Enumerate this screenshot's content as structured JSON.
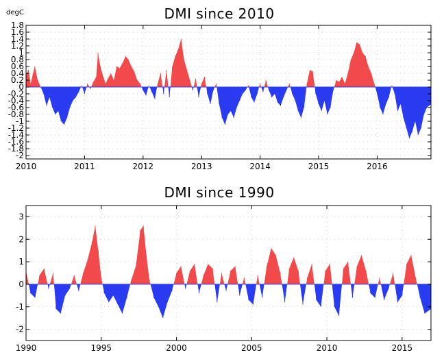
{
  "colors": {
    "positive": "#f24a4a",
    "negative": "#2a3cf2",
    "grid": "#c8c8c8",
    "frame": "#000000"
  },
  "chart_data": [
    {
      "type": "area",
      "title": "DMI since 2010",
      "ylabel": "degC",
      "grid": true,
      "xlim": [
        2010.0,
        2016.92
      ],
      "ylim": [
        -2.1,
        1.8
      ],
      "xticks": [
        2010,
        2011,
        2012,
        2013,
        2014,
        2015,
        2016
      ],
      "xtick_labels": [
        "2010",
        "2011",
        "2012",
        "2013",
        "2014",
        "2015",
        "2016"
      ],
      "yticks": [
        1.8,
        1.6,
        1.4,
        1.2,
        1,
        0.8,
        0.6,
        0.4,
        0.2,
        0,
        -0.2,
        -0.4,
        -0.6,
        -0.8,
        -1,
        -1.2,
        -1.4,
        -1.6,
        -1.8,
        -2
      ],
      "ytick_labels": [
        "1.8",
        "1.6",
        "1.4",
        "1.2",
        "1",
        "0.8",
        "0.6",
        "0.4",
        "0.2",
        "0",
        "-0.2",
        "-0.4",
        "-0.6",
        "-0.8",
        "-1",
        "-1.2",
        "-1.4",
        "-1.6",
        "-1.8",
        "-2"
      ],
      "series": [
        {
          "x": [
            2010.0,
            2010.04,
            2010.08,
            2010.12,
            2010.15,
            2010.2,
            2010.25,
            2010.3,
            2010.35,
            2010.4,
            2010.45,
            2010.5,
            2010.55,
            2010.6,
            2010.65,
            2010.7,
            2010.75,
            2010.8,
            2010.85,
            2010.9,
            2010.95,
            2011.0,
            2011.05,
            2011.1,
            2011.15,
            2011.2,
            2011.23,
            2011.27,
            2011.32,
            2011.36,
            2011.4,
            2011.45,
            2011.5,
            2011.55,
            2011.6,
            2011.65,
            2011.7,
            2011.75,
            2011.8,
            2011.85,
            2011.9,
            2011.95,
            2012.0,
            2012.05,
            2012.1,
            2012.15,
            2012.2,
            2012.25,
            2012.3,
            2012.35,
            2012.4,
            2012.45,
            2012.5,
            2012.55,
            2012.6,
            2012.65,
            2012.7,
            2012.75,
            2012.8,
            2012.85,
            2012.9,
            2012.95,
            2013.0,
            2013.05,
            2013.1,
            2013.15,
            2013.2,
            2013.25,
            2013.3,
            2013.35,
            2013.4,
            2013.45,
            2013.5,
            2013.55,
            2013.6,
            2013.65,
            2013.7,
            2013.75,
            2013.8,
            2013.85,
            2013.9,
            2013.95,
            2014.0,
            2014.05,
            2014.1,
            2014.15,
            2014.2,
            2014.25,
            2014.3,
            2014.35,
            2014.4,
            2014.45,
            2014.5,
            2014.55,
            2014.6,
            2014.65,
            2014.7,
            2014.75,
            2014.8,
            2014.85,
            2014.9,
            2014.95,
            2015.0,
            2015.05,
            2015.1,
            2015.15,
            2015.2,
            2015.25,
            2015.3,
            2015.35,
            2015.4,
            2015.45,
            2015.5,
            2015.55,
            2015.6,
            2015.65,
            2015.7,
            2015.75,
            2015.8,
            2015.85,
            2015.9,
            2015.95,
            2016.0,
            2016.05,
            2016.1,
            2016.15,
            2016.2,
            2016.25,
            2016.3,
            2016.35,
            2016.4,
            2016.45,
            2016.5,
            2016.55,
            2016.6,
            2016.65,
            2016.7,
            2016.75,
            2016.8,
            2016.85,
            2016.92
          ],
          "y": [
            0.35,
            0.5,
            0.1,
            0.4,
            0.6,
            0.2,
            0,
            -0.2,
            -0.55,
            -0.3,
            -0.6,
            -0.8,
            -0.7,
            -1.0,
            -1.1,
            -0.9,
            -0.6,
            -0.4,
            -0.3,
            -0.15,
            0.05,
            -0.2,
            0.1,
            -0.05,
            0.15,
            0.3,
            1.0,
            0.6,
            0.3,
            0.1,
            0.25,
            0.4,
            0.2,
            0.6,
            0.55,
            0.7,
            0.9,
            0.8,
            0.6,
            0.45,
            0.2,
            0.1,
            -0.1,
            -0.25,
            0.05,
            -0.15,
            -0.35,
            0.1,
            0.4,
            -0.2,
            0.5,
            -0.3,
            0.6,
            0.9,
            1.1,
            1.4,
            0.8,
            0.5,
            0.2,
            -0.1,
            0.25,
            -0.3,
            0.1,
            0.3,
            -0.2,
            -0.5,
            -0.1,
            0.1,
            -0.5,
            -0.9,
            -1.1,
            -0.8,
            -0.7,
            -0.9,
            -0.6,
            -0.4,
            -0.2,
            -0.1,
            0.05,
            -0.3,
            -0.45,
            -0.2,
            0.1,
            -0.15,
            0.2,
            -0.1,
            -0.3,
            -0.2,
            -0.45,
            -0.55,
            -0.3,
            -0.1,
            0.1,
            -0.2,
            -0.4,
            -0.7,
            -0.9,
            -0.6,
            0.1,
            0.5,
            0.45,
            -0.2,
            -0.5,
            -0.7,
            -0.4,
            -0.8,
            -0.6,
            -0.1,
            0.2,
            0.15,
            0.3,
            0.1,
            0.4,
            0.8,
            1.0,
            1.3,
            1.25,
            1.0,
            0.9,
            0.6,
            0.4,
            0.1,
            -0.2,
            -0.6,
            -0.8,
            -0.5,
            -0.3,
            0.05,
            -0.2,
            -0.7,
            -0.5,
            -0.9,
            -1.2,
            -1.5,
            -1.3,
            -1.0,
            -1.4,
            -1.2,
            -0.8,
            -0.6,
            -0.5
          ]
        }
      ]
    },
    {
      "type": "area",
      "title": "DMI since 1990",
      "grid": true,
      "xlim": [
        1990.0,
        2016.92
      ],
      "ylim": [
        -2.5,
        3.5
      ],
      "xticks": [
        1990,
        1995,
        2000,
        2005,
        2010,
        2015
      ],
      "xtick_labels": [
        "1990",
        "1995",
        "2000",
        "2005",
        "2010",
        "2015"
      ],
      "yticks": [
        3,
        2,
        1,
        0,
        -1,
        -2
      ],
      "ytick_labels": [
        "3",
        "2",
        "1",
        "0",
        "-1",
        "-2"
      ],
      "series": [
        {
          "x": [
            1990.0,
            1990.3,
            1990.6,
            1990.9,
            1991.2,
            1991.5,
            1991.8,
            1992.0,
            1992.3,
            1992.6,
            1992.9,
            1993.2,
            1993.5,
            1993.8,
            1994.1,
            1994.4,
            1994.6,
            1994.8,
            1995.0,
            1995.2,
            1995.5,
            1995.8,
            1996.1,
            1996.4,
            1996.7,
            1997.0,
            1997.3,
            1997.6,
            1997.8,
            1998.0,
            1998.2,
            1998.5,
            1998.8,
            1999.1,
            1999.4,
            1999.7,
            2000.0,
            2000.3,
            2000.6,
            2000.9,
            2001.2,
            2001.5,
            2001.8,
            2002.1,
            2002.4,
            2002.7,
            2003.0,
            2003.3,
            2003.6,
            2003.9,
            2004.2,
            2004.5,
            2004.8,
            2005.1,
            2005.4,
            2005.7,
            2006.0,
            2006.3,
            2006.6,
            2006.9,
            2007.2,
            2007.5,
            2007.8,
            2008.1,
            2008.4,
            2008.7,
            2009.0,
            2009.3,
            2009.6,
            2009.9,
            2010.2,
            2010.5,
            2010.8,
            2011.1,
            2011.4,
            2011.7,
            2012.0,
            2012.3,
            2012.6,
            2012.9,
            2013.2,
            2013.5,
            2013.8,
            2014.1,
            2014.4,
            2014.7,
            2015.0,
            2015.3,
            2015.6,
            2015.9,
            2016.2,
            2016.5,
            2016.92
          ],
          "y": [
            0.6,
            -0.4,
            -0.6,
            0.4,
            0.7,
            -0.2,
            0.5,
            -1.1,
            -1.3,
            -0.5,
            -0.2,
            0.4,
            -0.3,
            0.5,
            1.1,
            1.9,
            2.6,
            1.5,
            0.3,
            -0.4,
            -0.8,
            -0.5,
            -0.9,
            -1.3,
            -0.6,
            0.2,
            0.8,
            2.4,
            2.6,
            1.3,
            0.2,
            -0.6,
            -1.0,
            -1.5,
            -0.8,
            -0.3,
            0.5,
            0.8,
            -0.2,
            0.6,
            0.9,
            -0.4,
            0.4,
            0.9,
            0.7,
            -0.8,
            0.5,
            -0.3,
            0.6,
            0.8,
            -0.5,
            0.3,
            -0.7,
            -0.9,
            0.4,
            -0.6,
            0.8,
            1.6,
            1.3,
            0.5,
            -0.8,
            0.7,
            1.2,
            0.6,
            -0.9,
            0.3,
            0.9,
            -0.7,
            -1.0,
            0.6,
            0.9,
            -1.0,
            -1.4,
            0.7,
            1.0,
            -0.6,
            0.8,
            1.3,
            0.6,
            -0.4,
            -0.6,
            0.3,
            -0.7,
            -0.2,
            0.5,
            -0.8,
            -0.5,
            0.9,
            1.3,
            0.3,
            -0.6,
            -1.3,
            -1.1
          ]
        }
      ]
    }
  ]
}
